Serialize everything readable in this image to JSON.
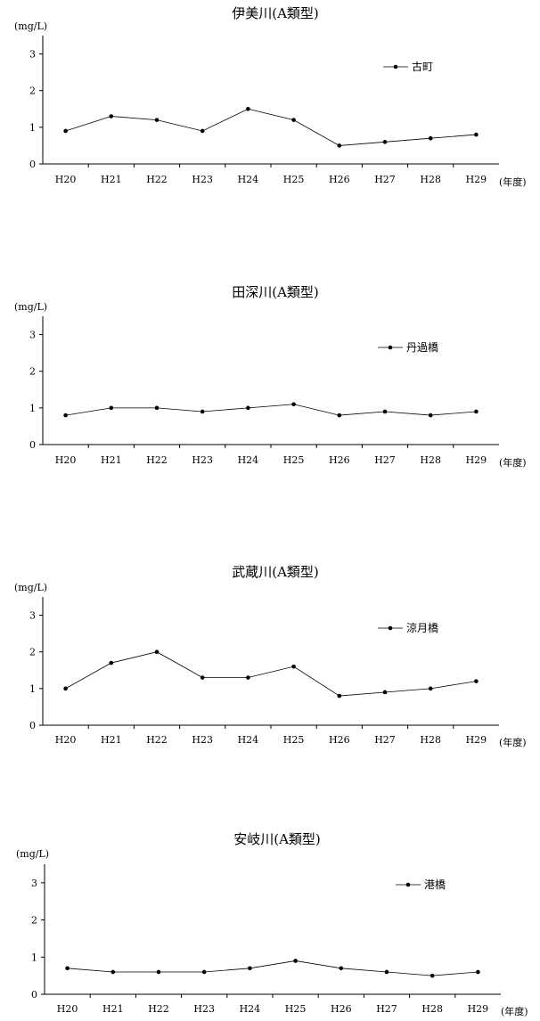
{
  "chart_data": [
    {
      "type": "line",
      "title": "伊美川(A類型)",
      "ylabel": "(mg/L)",
      "xlabel": "(年度)",
      "categories": [
        "H20",
        "H21",
        "H22",
        "H23",
        "H24",
        "H25",
        "H26",
        "H27",
        "H28",
        "H29"
      ],
      "series": [
        {
          "name": "古町",
          "values": [
            0.9,
            1.3,
            1.2,
            0.9,
            1.5,
            1.2,
            0.5,
            0.6,
            0.7,
            0.8
          ]
        }
      ],
      "ylim": [
        0,
        3.5
      ],
      "yticks": [
        0,
        1,
        2,
        3
      ],
      "grid": false,
      "legend": "top-right"
    },
    {
      "type": "line",
      "title": "田深川(A類型)",
      "ylabel": "(mg/L)",
      "xlabel": "(年度)",
      "categories": [
        "H20",
        "H21",
        "H22",
        "H23",
        "H24",
        "H25",
        "H26",
        "H27",
        "H28",
        "H29"
      ],
      "series": [
        {
          "name": "丹過橋",
          "values": [
            0.8,
            1.0,
            1.0,
            0.9,
            1.0,
            1.1,
            0.8,
            0.9,
            0.8,
            0.9
          ]
        }
      ],
      "ylim": [
        0,
        3.5
      ],
      "yticks": [
        0,
        1,
        2,
        3
      ],
      "grid": false,
      "legend": "top-right"
    },
    {
      "type": "line",
      "title": "武蔵川(A類型)",
      "ylabel": "(mg/L)",
      "xlabel": "(年度)",
      "categories": [
        "H20",
        "H21",
        "H22",
        "H23",
        "H24",
        "H25",
        "H26",
        "H27",
        "H28",
        "H29"
      ],
      "series": [
        {
          "name": "涼月橋",
          "values": [
            1.0,
            1.7,
            2.0,
            1.3,
            1.3,
            1.6,
            0.8,
            0.9,
            1.0,
            1.2
          ]
        }
      ],
      "ylim": [
        0,
        3.5
      ],
      "yticks": [
        0,
        1,
        2,
        3
      ],
      "grid": false,
      "legend": "top-right"
    },
    {
      "type": "line",
      "title": "安岐川(A類型)",
      "ylabel": "(mg/L)",
      "xlabel": "(年度)",
      "categories": [
        "H20",
        "H21",
        "H22",
        "H23",
        "H24",
        "H25",
        "H26",
        "H27",
        "H28",
        "H29"
      ],
      "series": [
        {
          "name": "港橋",
          "values": [
            0.7,
            0.6,
            0.6,
            0.6,
            0.7,
            0.9,
            0.7,
            0.6,
            0.5,
            0.6
          ]
        }
      ],
      "ylim": [
        0,
        3.5
      ],
      "yticks": [
        0,
        1,
        2,
        3
      ],
      "grid": false,
      "legend": "top-right"
    }
  ]
}
